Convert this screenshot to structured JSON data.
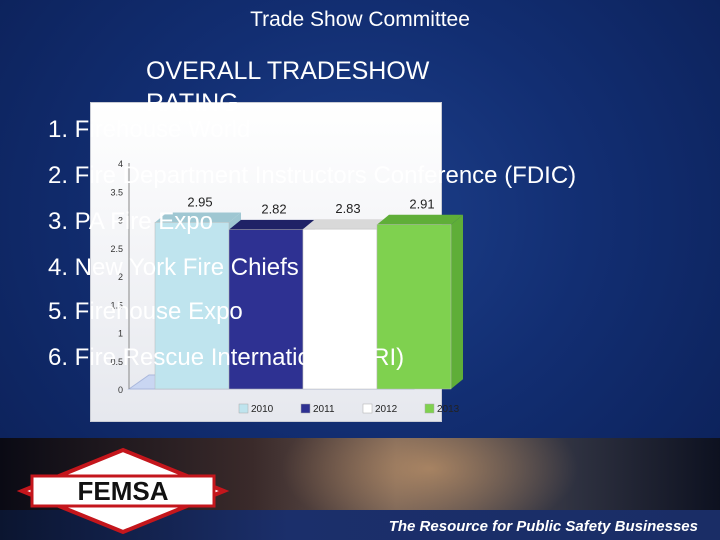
{
  "slide": {
    "title": "Trade Show Committee",
    "heading": "OVERALL TRADESHOW RATING",
    "list": [
      "1. Firehouse World",
      "2. Fire Department Instructors Conference (FDIC)",
      "3. PA Fire Expo",
      "4. New York Fire Chiefs",
      "5. Firehouse Expo",
      "6. Fire Rescue International (FRI)"
    ],
    "colors": {
      "background": "#122e72",
      "text": "#ffffff"
    }
  },
  "chart_data": {
    "type": "bar",
    "categories": [
      "2010",
      "2011",
      "2012",
      "2013"
    ],
    "values": [
      2.95,
      2.82,
      2.83,
      2.91
    ],
    "value_labels": [
      "2.95",
      "2.82",
      "2.83",
      "2.91"
    ],
    "y_ticks": [
      "0",
      "0.5",
      "1",
      "1.5",
      "2",
      "2.5",
      "3",
      "3.5",
      "4"
    ],
    "ylim": [
      0,
      4
    ],
    "legend": [
      "2010",
      "2011",
      "2012",
      "2013"
    ],
    "legend_position": "bottom",
    "colors": [
      "#bfe4ee",
      "#2e3192",
      "#ffffff",
      "#7fd14f"
    ],
    "style": "3d"
  },
  "footer": {
    "logo_text": "FEMSA",
    "tagline": "The Resource for Public Safety Businesses"
  }
}
